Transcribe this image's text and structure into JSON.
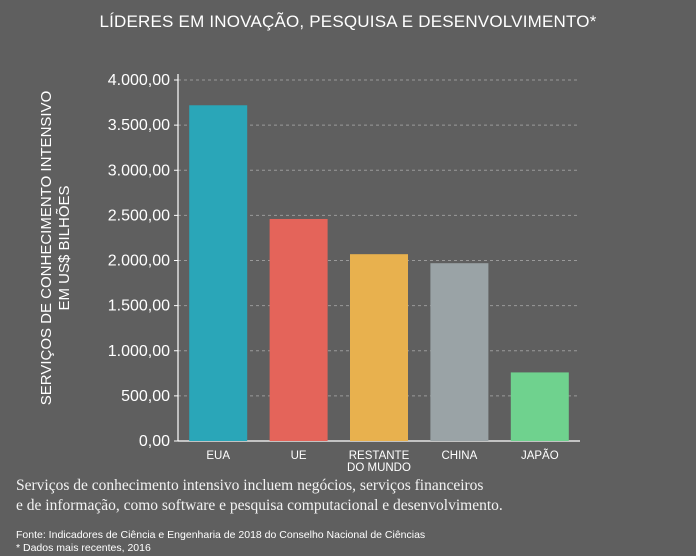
{
  "chart_data": {
    "type": "bar",
    "title": "LÍDERES EM INOVAÇÃO, PESQUISA E DESENVOLVIMENTO*",
    "ylabel_lines": [
      "SERVIÇOS DE CONHECIMENTO INTENSIVO",
      "EM US$ BILHÕES"
    ],
    "categories": [
      {
        "lines": [
          "EUA"
        ]
      },
      {
        "lines": [
          "UE"
        ]
      },
      {
        "lines": [
          "RESTANTE",
          "DO MUNDO"
        ]
      },
      {
        "lines": [
          "CHINA"
        ]
      },
      {
        "lines": [
          "JAPÃO"
        ]
      }
    ],
    "values": [
      3720,
      2460,
      2070,
      1970,
      760
    ],
    "colors": [
      "#2aa6b8",
      "#e4645a",
      "#e8b14e",
      "#9aa3a6",
      "#6fd28e"
    ],
    "ylim": [
      0,
      4000
    ],
    "yticks": [
      {
        "value": 0,
        "label": "0,00"
      },
      {
        "value": 500,
        "label": "500,00"
      },
      {
        "value": 1000,
        "label": "1.000,00"
      },
      {
        "value": 1500,
        "label": "1.500,00"
      },
      {
        "value": 2000,
        "label": "2.000,00"
      },
      {
        "value": 2500,
        "label": "2.500,00"
      },
      {
        "value": 3000,
        "label": "3.000,00"
      },
      {
        "value": 3500,
        "label": "3.500,00"
      },
      {
        "value": 4000,
        "label": "4.000,00"
      }
    ],
    "grid": true
  },
  "footnote": {
    "line1": "Serviços de conhecimento intensivo incluem negócios, serviços financeiros",
    "line2": "e de informação, como software e pesquisa computacional e desenvolvimento."
  },
  "source": {
    "line1": "Fonte: Indicadores de Ciência e Engenharia de 2018 do Conselho Nacional de Ciências",
    "line2": "* Dados mais recentes, 2016"
  }
}
